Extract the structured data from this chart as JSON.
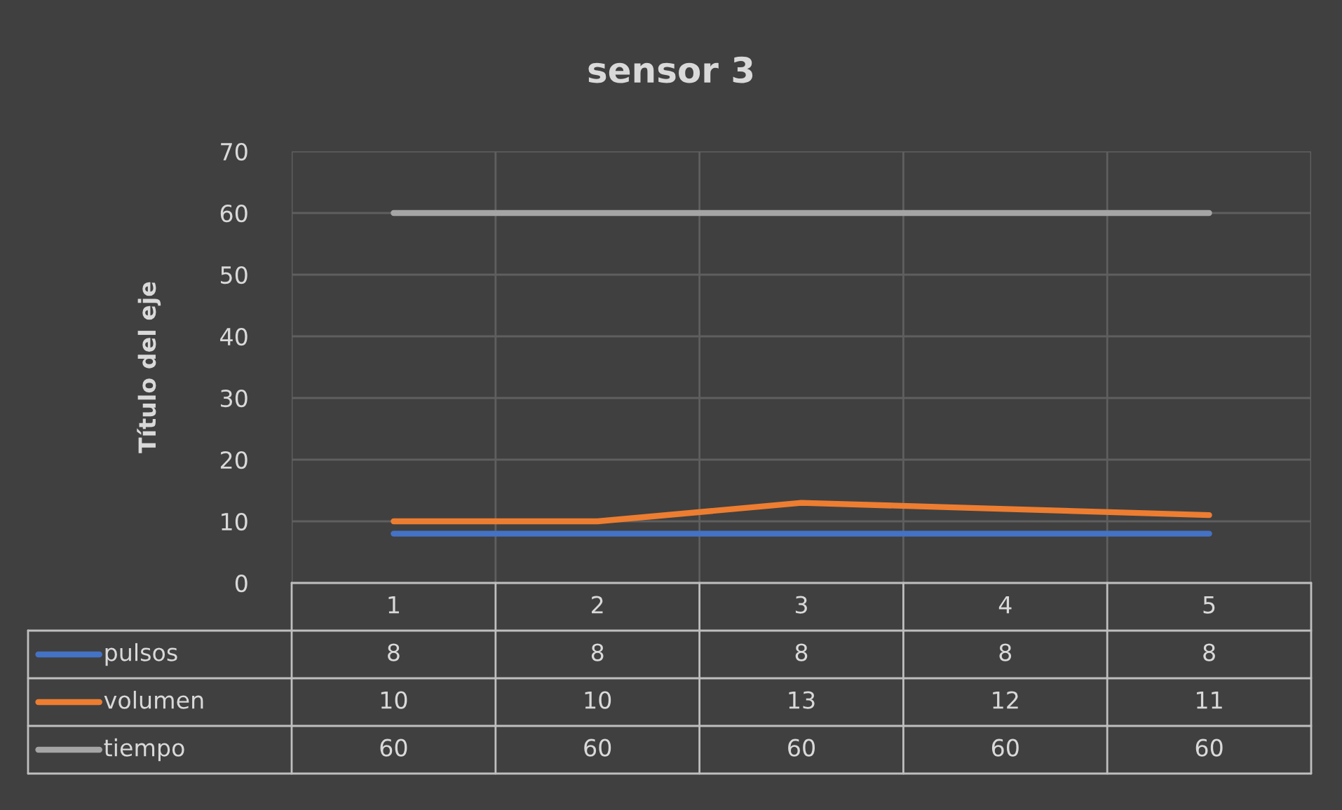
{
  "chart_data": {
    "type": "line",
    "title": "sensor 3",
    "ylabel": "Título del eje",
    "categories": [
      "1",
      "2",
      "3",
      "4",
      "5"
    ],
    "series": [
      {
        "name": "pulsos",
        "color": "#4472c4",
        "values": [
          8,
          8,
          8,
          8,
          8
        ]
      },
      {
        "name": "volumen",
        "color": "#ed7d31",
        "values": [
          10,
          10,
          13,
          12,
          11
        ]
      },
      {
        "name": "tiempo",
        "color": "#a5a5a5",
        "values": [
          60,
          60,
          60,
          60,
          60
        ]
      }
    ],
    "ylim": [
      0,
      70
    ],
    "yticks": [
      0,
      10,
      20,
      30,
      40,
      50,
      60,
      70
    ],
    "grid": true,
    "legend": "bottom",
    "data_labels": true,
    "marker": "none",
    "line_style": "solid"
  }
}
